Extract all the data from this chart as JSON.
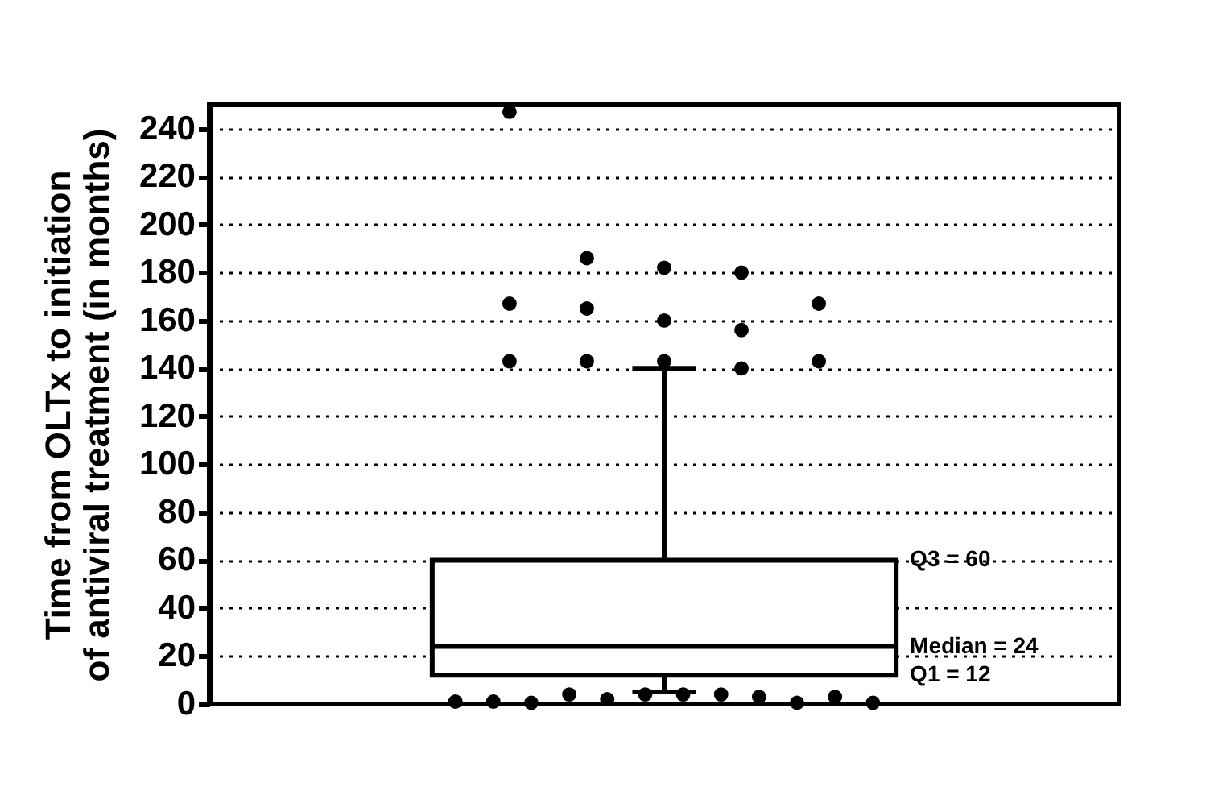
{
  "chart_data": {
    "type": "box",
    "ylabel": "Time from OLTx to initiation\nof antiviral treatment (in months)",
    "categories": [
      null
    ],
    "boxes": [
      {
        "low": 5,
        "q1": 12,
        "median": 24,
        "q3": 60,
        "high": 140,
        "outliers": [
          247,
          186,
          182,
          180,
          167,
          167,
          165,
          160,
          156,
          143,
          143,
          143,
          143,
          140,
          1,
          1,
          0.5,
          4,
          2,
          4,
          4,
          4,
          3,
          0.5,
          3,
          0.5
        ]
      }
    ],
    "color": "#000000",
    "ylim": [
      0,
      250
    ],
    "yticks": [
      0,
      20,
      40,
      60,
      80,
      100,
      120,
      140,
      160,
      180,
      200,
      220,
      240
    ],
    "grid": "y",
    "annotations": [
      "Q3 = 60",
      "Median = 24",
      "Q1 = 12"
    ]
  }
}
